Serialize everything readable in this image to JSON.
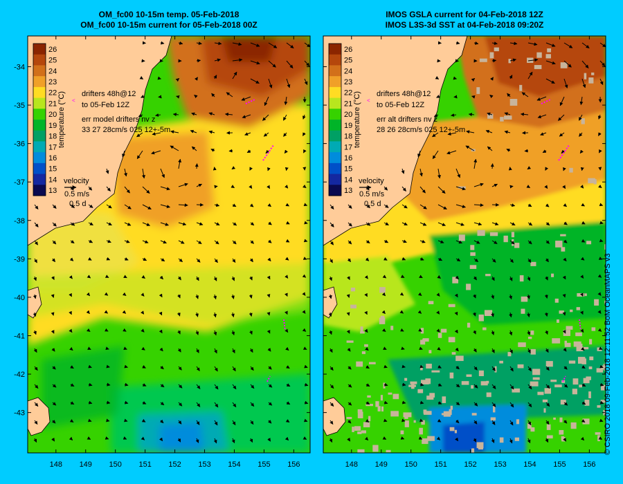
{
  "left_panel": {
    "title_line1": "OM_fc00 10-15m temp. 05-Feb-2018",
    "title_line2": "OM_fc00 10-15m current for 05-Feb-2018 00Z",
    "drifter_label_line1": "drifters 48h@12",
    "drifter_label_line2": "to 05-Feb 12Z",
    "err_label_line1": "err model drifters nv z",
    "err_label_line2": "33 27 28cm/s 025 12+-5m"
  },
  "right_panel": {
    "title_line1": "IMOS GSLA current for 04-Feb-2018 12Z",
    "title_line2": "IMOS L3S-3d SST at 04-Feb-2018 09:20Z",
    "drifter_label_line1": "drifters 48h@12",
    "drifter_label_line2": "to 05-Feb 12Z",
    "err_label_line1": "err alt drifters nv z",
    "err_label_line2": "28 26 28cm/s 025 12+-5m"
  },
  "colorbar": {
    "label": "temperature (°C)",
    "min": 13,
    "max": 26,
    "ticks": [
      "26",
      "25",
      "24",
      "23",
      "22",
      "21",
      "20",
      "19",
      "18",
      "17",
      "16",
      "15",
      "14",
      "13"
    ],
    "colors": {
      "26": "#8b2500",
      "25": "#b5470c",
      "24": "#d2701a",
      "23": "#f0a028",
      "22": "#ffdc23",
      "21": "#b8e61e",
      "20": "#36d200",
      "19": "#00b428",
      "18": "#00a064",
      "17": "#00aab4",
      "16": "#008cdc",
      "15": "#0050c8",
      "14": "#1428a0",
      "13": "#0a0a50"
    }
  },
  "velocity_legend": {
    "label": "velocity",
    "speed": "0.5 m/s",
    "time": "0.5 d"
  },
  "lat_labels": [
    "-34",
    "-35",
    "-36",
    "-37",
    "-38",
    "-39",
    "-40",
    "-41",
    "-42",
    "-43"
  ],
  "lon_labels": [
    "148",
    "149",
    "150",
    "151",
    "152",
    "153",
    "154",
    "155",
    "156"
  ],
  "credit": "© CSIRO 2018   09-Feb-2018 12:11:52 BoM OceanMAPS v3",
  "colors": {
    "background": "#00ccff",
    "land": "#ffcc99",
    "drifter": "#ff00ff",
    "missing_data": "#c8b49b"
  }
}
